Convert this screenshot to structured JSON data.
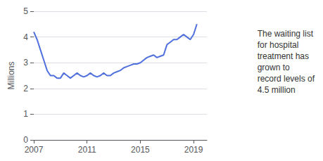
{
  "chart_data": {
    "type": "line",
    "ylabel": "Millions",
    "annotation": "The waiting list\nfor hospital\ntreatment has\ngrown to\nrecord levels of\n4.5 million",
    "x": [
      2007.0,
      2007.25,
      2007.5,
      2007.75,
      2008.0,
      2008.25,
      2008.5,
      2008.75,
      2009.0,
      2009.25,
      2009.5,
      2009.75,
      2010.0,
      2010.25,
      2010.5,
      2010.75,
      2011.0,
      2011.25,
      2011.5,
      2011.75,
      2012.0,
      2012.25,
      2012.5,
      2012.75,
      2013.0,
      2013.25,
      2013.5,
      2013.75,
      2014.0,
      2014.25,
      2014.5,
      2014.75,
      2015.0,
      2015.25,
      2015.5,
      2015.75,
      2016.0,
      2016.25,
      2016.5,
      2016.75,
      2017.0,
      2017.25,
      2017.5,
      2017.75,
      2018.0,
      2018.25,
      2018.5,
      2018.75,
      2019.0,
      2019.25
    ],
    "values": [
      4.2,
      3.9,
      3.5,
      3.1,
      2.7,
      2.5,
      2.5,
      2.4,
      2.4,
      2.6,
      2.5,
      2.4,
      2.5,
      2.6,
      2.5,
      2.45,
      2.5,
      2.6,
      2.5,
      2.45,
      2.5,
      2.6,
      2.5,
      2.5,
      2.6,
      2.65,
      2.7,
      2.8,
      2.85,
      2.9,
      2.95,
      2.95,
      3.0,
      3.1,
      3.2,
      3.25,
      3.3,
      3.2,
      3.25,
      3.3,
      3.7,
      3.8,
      3.9,
      3.9,
      4.0,
      4.1,
      4.0,
      3.9,
      4.1,
      4.5
    ],
    "xlim": [
      2007,
      2020
    ],
    "xticks": [
      2007,
      2011,
      2015,
      2019
    ],
    "ylim": [
      0,
      5
    ],
    "yticks": [
      0,
      1,
      2,
      3,
      4,
      5
    ],
    "grid": true
  }
}
